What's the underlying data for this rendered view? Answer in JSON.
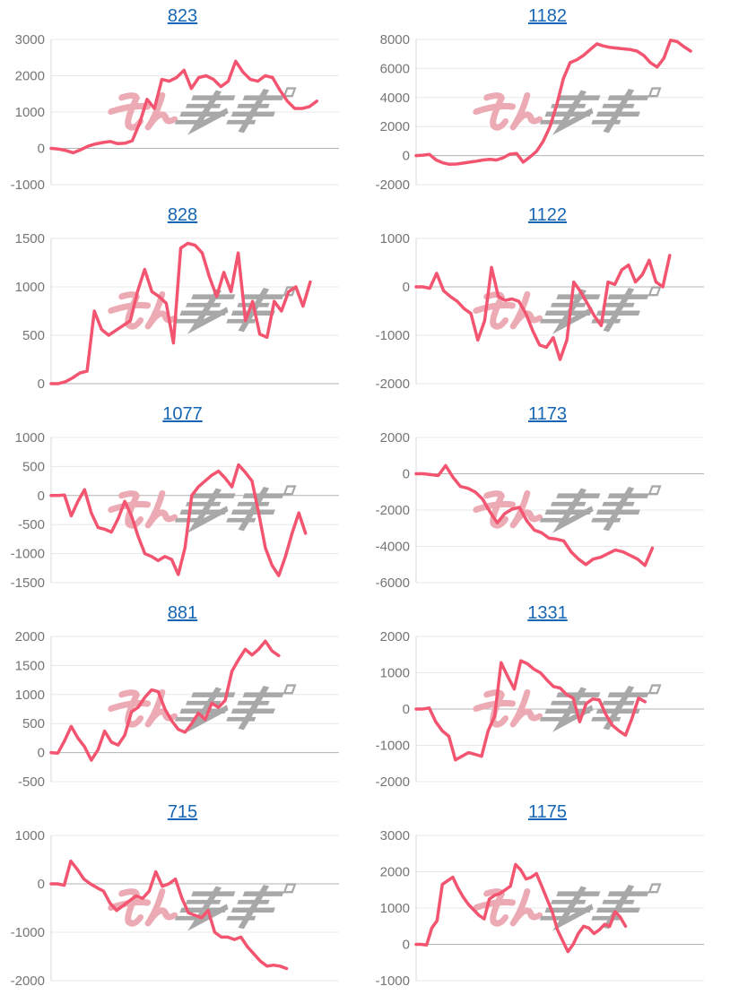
{
  "page": {
    "description": "Grid of 10 daily profit line charts, each titled by machine number link",
    "watermark_text": "みんレポ"
  },
  "colors": {
    "line": "#f3546f",
    "title_link": "#1766b3",
    "grid_line": "#e8e8e8",
    "zero_line": "#b3b3b3",
    "axis_line": "#d9d9d9",
    "tick_text": "#757575",
    "watermark_pink": "#ecaab4",
    "watermark_gray": "#a8a8a8",
    "background": "#ffffff"
  },
  "chart_data": [
    {
      "type": "line",
      "title": "823",
      "xlabel": "",
      "ylabel": "",
      "ylim": [
        -1000,
        3000
      ],
      "yticks": [
        3000,
        2000,
        1000,
        0,
        -1000
      ],
      "x_slots": 40,
      "values": [
        0,
        -20,
        -60,
        -120,
        -40,
        60,
        120,
        160,
        190,
        130,
        140,
        210,
        700,
        1350,
        1100,
        1900,
        1850,
        1950,
        2150,
        1650,
        1950,
        2000,
        1900,
        1700,
        1850,
        2400,
        2100,
        1900,
        1850,
        2000,
        1950,
        1600,
        1300,
        1100,
        1100,
        1150,
        1300
      ]
    },
    {
      "type": "line",
      "title": "1182",
      "xlabel": "",
      "ylabel": "",
      "ylim": [
        -2000,
        8000
      ],
      "yticks": [
        8000,
        6000,
        4000,
        2000,
        0,
        -2000
      ],
      "x_slots": 44,
      "values": [
        0,
        30,
        80,
        -300,
        -500,
        -600,
        -580,
        -520,
        -450,
        -380,
        -300,
        -250,
        -300,
        -150,
        100,
        150,
        -450,
        -100,
        300,
        1000,
        2000,
        3500,
        5300,
        6400,
        6600,
        6900,
        7300,
        7700,
        7550,
        7450,
        7400,
        7350,
        7300,
        7200,
        6900,
        6400,
        6100,
        6700,
        7950,
        7850,
        7500,
        7200
      ]
    },
    {
      "type": "line",
      "title": "828",
      "xlabel": "",
      "ylabel": "",
      "ylim": [
        0,
        1500
      ],
      "yticks": [
        1500,
        1000,
        500,
        0
      ],
      "x_slots": 41,
      "values": [
        0,
        0,
        20,
        60,
        110,
        130,
        750,
        560,
        500,
        550,
        600,
        650,
        950,
        1180,
        950,
        900,
        830,
        420,
        1400,
        1450,
        1430,
        1350,
        1100,
        900,
        1150,
        950,
        1350,
        650,
        850,
        510,
        480,
        850,
        750,
        950,
        1000,
        800,
        1050
      ]
    },
    {
      "type": "line",
      "title": "1122",
      "xlabel": "",
      "ylabel": "",
      "ylim": [
        -2000,
        1000
      ],
      "yticks": [
        1000,
        0,
        -1000,
        -2000
      ],
      "x_slots": 43,
      "values": [
        0,
        0,
        -30,
        280,
        -80,
        -200,
        -300,
        -450,
        -550,
        -1100,
        -700,
        400,
        -200,
        -280,
        -250,
        -300,
        -550,
        -900,
        -1200,
        -1250,
        -1050,
        -1500,
        -1100,
        100,
        -100,
        -350,
        -600,
        -800,
        100,
        50,
        350,
        450,
        100,
        250,
        550,
        100,
        0,
        650
      ]
    },
    {
      "type": "line",
      "title": "1077",
      "xlabel": "",
      "ylabel": "",
      "ylim": [
        -1500,
        1000
      ],
      "yticks": [
        1000,
        500,
        0,
        -500,
        -1000,
        -1500
      ],
      "x_slots": 44,
      "values": [
        0,
        0,
        10,
        -350,
        -100,
        100,
        -300,
        -550,
        -580,
        -630,
        -400,
        -100,
        -350,
        -700,
        -1000,
        -1050,
        -1120,
        -1050,
        -1100,
        -1360,
        -900,
        0,
        150,
        250,
        350,
        420,
        300,
        150,
        530,
        400,
        250,
        -300,
        -900,
        -1200,
        -1380,
        -1050,
        -650,
        -300,
        -650
      ]
    },
    {
      "type": "line",
      "title": "1173",
      "xlabel": "",
      "ylabel": "",
      "ylim": [
        -6000,
        2000
      ],
      "yticks": [
        2000,
        0,
        -2000,
        -4000,
        -6000
      ],
      "x_slots": 40,
      "values": [
        0,
        0,
        -50,
        -100,
        450,
        -200,
        -700,
        -800,
        -1000,
        -1400,
        -2100,
        -2700,
        -2200,
        -1950,
        -1850,
        -2600,
        -3100,
        -3250,
        -3550,
        -3600,
        -3700,
        -4300,
        -4700,
        -5000,
        -4700,
        -4600,
        -4400,
        -4200,
        -4300,
        -4500,
        -4700,
        -5050,
        -4100
      ]
    },
    {
      "type": "line",
      "title": "881",
      "xlabel": "",
      "ylabel": "",
      "ylim": [
        -500,
        2000
      ],
      "yticks": [
        2000,
        1500,
        1000,
        500,
        0,
        -500
      ],
      "x_slots": 44,
      "values": [
        0,
        -10,
        200,
        450,
        250,
        100,
        -130,
        50,
        370,
        180,
        130,
        300,
        700,
        780,
        950,
        1080,
        1050,
        750,
        550,
        400,
        350,
        500,
        680,
        570,
        850,
        780,
        900,
        1400,
        1600,
        1780,
        1680,
        1780,
        1920,
        1750,
        1670
      ]
    },
    {
      "type": "line",
      "title": "1331",
      "xlabel": "",
      "ylabel": "",
      "ylim": [
        -2000,
        2000
      ],
      "yticks": [
        2000,
        1000,
        0,
        -1000,
        -2000
      ],
      "x_slots": 45,
      "values": [
        0,
        0,
        30,
        -350,
        -600,
        -750,
        -1400,
        -1300,
        -1200,
        -1250,
        -1300,
        -600,
        -200,
        1280,
        900,
        550,
        1330,
        1250,
        1100,
        1000,
        800,
        620,
        580,
        400,
        300,
        -350,
        150,
        280,
        250,
        -150,
        -450,
        -600,
        -720,
        -250,
        300,
        200
      ]
    },
    {
      "type": "line",
      "title": "715",
      "xlabel": "",
      "ylabel": "",
      "ylim": [
        -2000,
        1000
      ],
      "yticks": [
        1000,
        0,
        -1000,
        -2000
      ],
      "x_slots": 45,
      "values": [
        0,
        0,
        -30,
        470,
        300,
        100,
        0,
        -80,
        -150,
        -400,
        -550,
        -450,
        -350,
        -250,
        -300,
        -150,
        250,
        -50,
        0,
        100,
        -300,
        -600,
        -650,
        -700,
        -550,
        -1000,
        -1100,
        -1100,
        -1150,
        -1100,
        -1300,
        -1450,
        -1600,
        -1700,
        -1680,
        -1700,
        -1750
      ]
    },
    {
      "type": "line",
      "title": "1175",
      "xlabel": "",
      "ylabel": "",
      "ylim": [
        -1000,
        3000
      ],
      "yticks": [
        3000,
        2000,
        1000,
        0,
        -1000
      ],
      "x_slots": 56,
      "values": [
        0,
        0,
        -20,
        450,
        650,
        1650,
        1750,
        1850,
        1550,
        1300,
        1100,
        950,
        800,
        700,
        1250,
        1350,
        1400,
        1500,
        1600,
        2200,
        2050,
        1800,
        1850,
        1950,
        1600,
        1250,
        900,
        400,
        100,
        -200,
        0,
        300,
        500,
        450,
        300,
        400,
        550,
        500,
        900,
        750,
        500
      ]
    }
  ]
}
